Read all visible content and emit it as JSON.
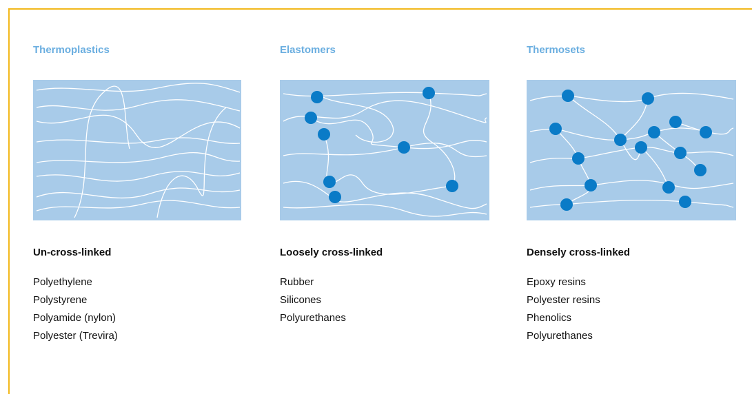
{
  "columns": [
    {
      "title": "Thermoplastics",
      "structure": "Un-cross-linked",
      "examples": [
        "Polyethylene",
        "Polystyrene",
        "Polyamide (nylon)",
        "Polyester (Trevira)"
      ]
    },
    {
      "title": "Elastomers",
      "structure": "Loosely cross-linked",
      "examples": [
        "Rubber",
        "Silicones",
        "Polyurethanes"
      ]
    },
    {
      "title": "Thermosets",
      "structure": "Densely cross-linked",
      "examples": [
        "Epoxy resins",
        "Polyester resins",
        "Phenolics",
        "Polyurethanes"
      ]
    }
  ]
}
